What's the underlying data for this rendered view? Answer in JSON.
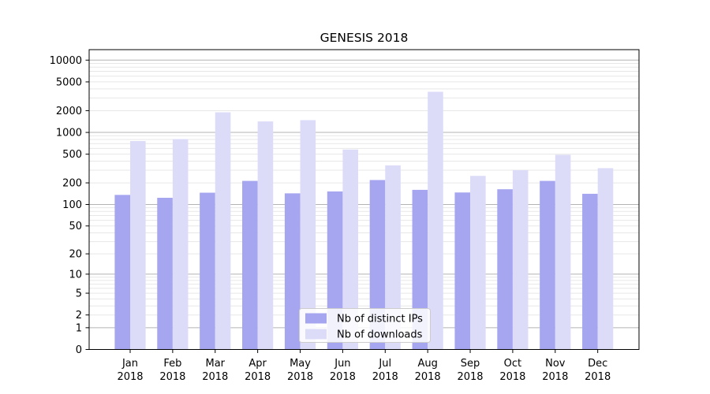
{
  "chart_data": {
    "type": "bar",
    "title": "GENESIS 2018",
    "categories": [
      "Jan 2018",
      "Feb 2018",
      "Mar 2018",
      "Apr 2018",
      "May 2018",
      "Jun 2018",
      "Jul 2018",
      "Aug 2018",
      "Sep 2018",
      "Oct 2018",
      "Nov 2018",
      "Dec 2018"
    ],
    "series": [
      {
        "name": "Nb of distinct IPs",
        "color": "#a5a5f0",
        "values": [
          136,
          124,
          146,
          213,
          143,
          152,
          219,
          160,
          147,
          163,
          213,
          141
        ]
      },
      {
        "name": "Nb of downloads",
        "color": "#dcdcf8",
        "values": [
          760,
          810,
          1900,
          1420,
          1480,
          580,
          350,
          3650,
          250,
          300,
          490,
          320
        ]
      }
    ],
    "yscale": "log1p",
    "yticks": [
      0,
      1,
      2,
      5,
      10,
      20,
      50,
      100,
      200,
      500,
      1000,
      2000,
      5000,
      10000
    ],
    "ylim": [
      0,
      14000
    ],
    "grid": true,
    "legend_position": "lower center",
    "colors": {
      "major_grid": "#b3b3b3",
      "minor_grid": "#e7e7e7",
      "spine": "#000000",
      "legend_border": "#cccccc",
      "legend_bg": "rgba(255,255,255,0.85)"
    }
  }
}
